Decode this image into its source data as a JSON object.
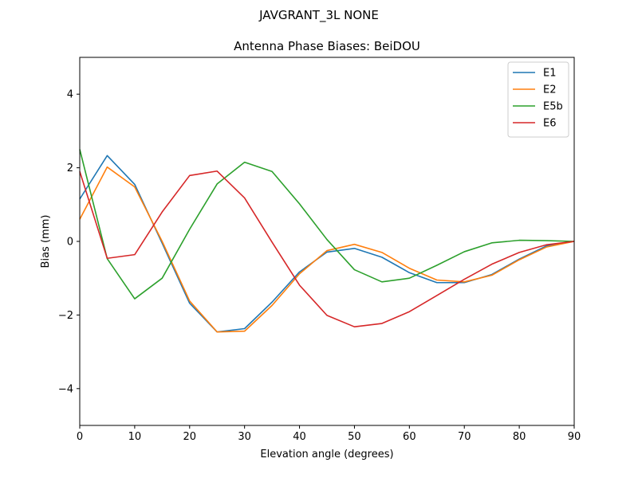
{
  "figure": {
    "suptitle": "JAVGRANT_3L     NONE"
  },
  "chart_data": {
    "type": "line",
    "title": "Antenna Phase Biases: BeiDOU",
    "xlabel": "Elevation angle (degrees)",
    "ylabel": "Bias (mm)",
    "xlim": [
      0,
      90
    ],
    "ylim": [
      -5,
      5
    ],
    "xticks": [
      0,
      10,
      20,
      30,
      40,
      50,
      60,
      70,
      80,
      90
    ],
    "yticks": [
      -4,
      -2,
      0,
      2,
      4
    ],
    "ytick_labels": [
      "−4",
      "−2",
      "0",
      "2",
      "4"
    ],
    "grid": false,
    "legend_position": "top-right",
    "x": [
      0,
      5,
      10,
      15,
      20,
      25,
      30,
      35,
      40,
      45,
      50,
      55,
      60,
      65,
      70,
      75,
      80,
      85,
      90
    ],
    "series": [
      {
        "name": "E1",
        "color": "#1f77b4",
        "values": [
          1.15,
          2.33,
          1.55,
          -0.05,
          -1.68,
          -2.46,
          -2.37,
          -1.65,
          -0.83,
          -0.29,
          -0.19,
          -0.43,
          -0.85,
          -1.12,
          -1.12,
          -0.9,
          -0.48,
          -0.12,
          0.0
        ]
      },
      {
        "name": "E2",
        "color": "#ff7f0e",
        "values": [
          0.6,
          2.02,
          1.48,
          0.0,
          -1.62,
          -2.46,
          -2.44,
          -1.74,
          -0.88,
          -0.25,
          -0.08,
          -0.3,
          -0.73,
          -1.05,
          -1.1,
          -0.92,
          -0.5,
          -0.15,
          0.0
        ]
      },
      {
        "name": "E5b",
        "color": "#2ca02c",
        "values": [
          2.5,
          -0.47,
          -1.56,
          -1.0,
          0.33,
          1.56,
          2.15,
          1.9,
          1.02,
          0.05,
          -0.77,
          -1.1,
          -1.0,
          -0.65,
          -0.28,
          -0.04,
          0.03,
          0.02,
          0.0
        ]
      },
      {
        "name": "E6",
        "color": "#d62728",
        "values": [
          1.9,
          -0.46,
          -0.36,
          0.8,
          1.79,
          1.91,
          1.18,
          -0.02,
          -1.19,
          -2.01,
          -2.32,
          -2.23,
          -1.91,
          -1.47,
          -1.03,
          -0.62,
          -0.3,
          -0.09,
          0.0
        ]
      }
    ]
  }
}
